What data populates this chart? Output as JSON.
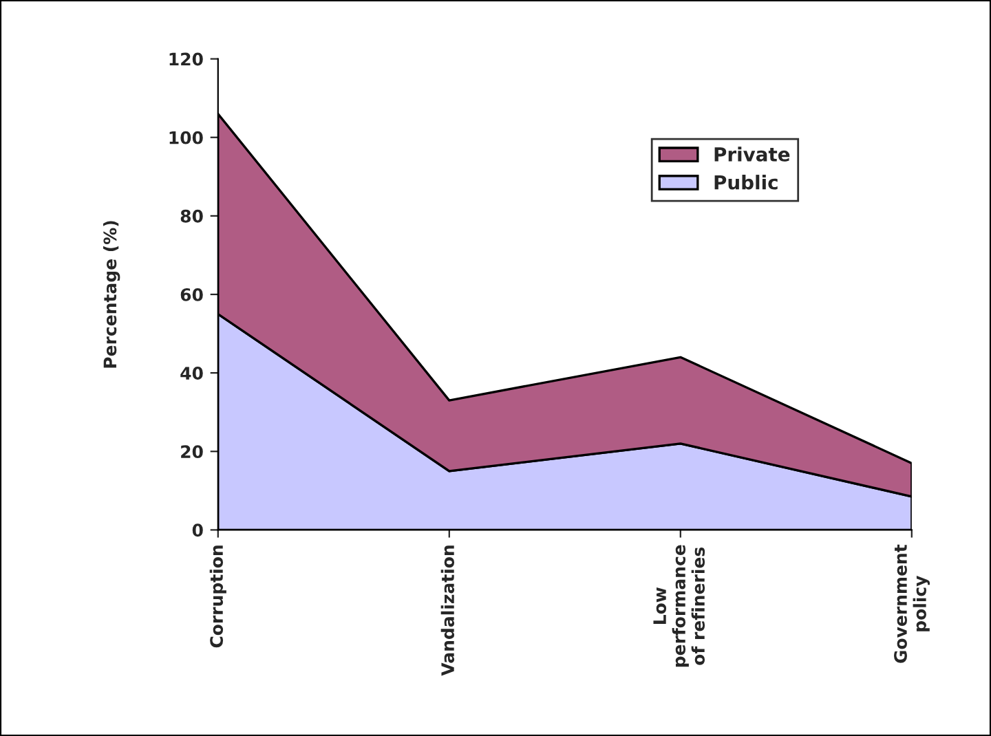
{
  "chart_data": {
    "type": "area",
    "stacked": true,
    "ylabel": "Percentage (%)",
    "categories": [
      "Corruption",
      "Vandalization",
      "Low\nperformance\nof refineries",
      "Government\npolicy"
    ],
    "series": [
      {
        "name": "Public",
        "color": "#c8c8ff",
        "values": [
          55,
          15,
          22,
          8.5
        ]
      },
      {
        "name": "Private",
        "color": "#b05c84",
        "values": [
          51,
          18,
          22,
          8.5
        ]
      }
    ],
    "ylim": [
      0,
      120
    ],
    "yticks": [
      0,
      20,
      40,
      60,
      80,
      100,
      120
    ],
    "grid": false,
    "legend": "top right"
  }
}
